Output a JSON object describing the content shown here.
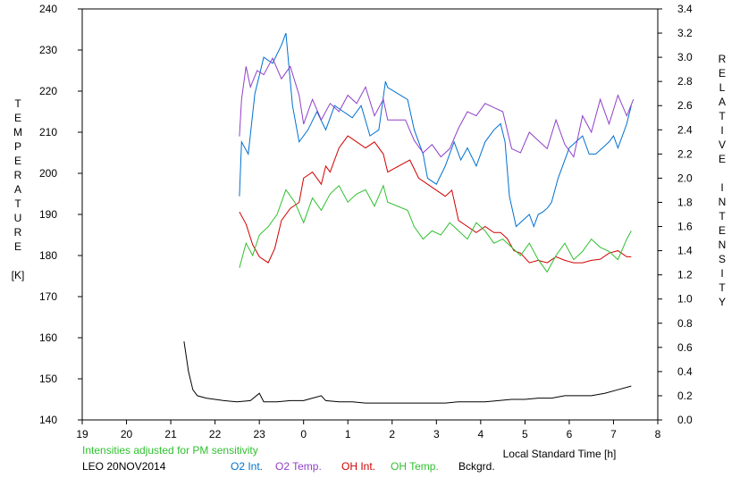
{
  "chart_data": {
    "type": "line",
    "left_axis_letters": [
      "T",
      "E",
      "M",
      "P",
      "E",
      "R",
      "A",
      "T",
      "U",
      "R",
      "E"
    ],
    "left_axis_unit": "[K]",
    "right_axis_letters": [
      "R",
      "E",
      "L",
      "A",
      "T",
      "I",
      "V",
      "E",
      "",
      "I",
      "N",
      "T",
      "E",
      "N",
      "S",
      "I",
      "T",
      "Y"
    ],
    "xlabel": "Local Standard Time [h]",
    "x_ticks": [
      19,
      20,
      21,
      22,
      23,
      0,
      1,
      2,
      3,
      4,
      5,
      6,
      7,
      8
    ],
    "y_left_ticks": [
      140,
      150,
      160,
      170,
      180,
      190,
      200,
      210,
      220,
      230,
      240
    ],
    "y_right_ticks": [
      "0.0",
      "0.2",
      "0.4",
      "0.6",
      "0.8",
      "1.0",
      "1.2",
      "1.4",
      "1.6",
      "1.8",
      "2.0",
      "2.2",
      "2.4",
      "2.6",
      "2.8",
      "3.0",
      "3.2",
      "3.4"
    ],
    "xlim": [
      19,
      32
    ],
    "ylim_left": [
      140,
      240
    ],
    "ylim_right": [
      0.0,
      3.4
    ],
    "note": "Intensities adjusted for PM sensitivity",
    "station_date": "LEO 20NOV2014",
    "series": [
      {
        "name": "O2 Int.",
        "axis": "right",
        "color": "#0070d0",
        "points": [
          [
            22.55,
            1.85
          ],
          [
            22.6,
            2.3
          ],
          [
            22.75,
            2.2
          ],
          [
            22.9,
            2.7
          ],
          [
            23.0,
            2.85
          ],
          [
            23.1,
            3.0
          ],
          [
            23.3,
            2.95
          ],
          [
            23.5,
            3.1
          ],
          [
            23.6,
            3.2
          ],
          [
            23.75,
            2.6
          ],
          [
            23.9,
            2.3
          ],
          [
            24.1,
            2.4
          ],
          [
            24.3,
            2.55
          ],
          [
            24.5,
            2.4
          ],
          [
            24.7,
            2.6
          ],
          [
            24.9,
            2.55
          ],
          [
            25.1,
            2.5
          ],
          [
            25.3,
            2.6
          ],
          [
            25.5,
            2.35
          ],
          [
            25.7,
            2.4
          ],
          [
            25.85,
            2.8
          ],
          [
            25.9,
            2.75
          ],
          [
            26.35,
            2.65
          ],
          [
            26.5,
            2.4
          ],
          [
            26.7,
            2.2
          ],
          [
            26.8,
            2.0
          ],
          [
            27.0,
            1.95
          ],
          [
            27.2,
            2.1
          ],
          [
            27.4,
            2.3
          ],
          [
            27.55,
            2.15
          ],
          [
            27.7,
            2.25
          ],
          [
            27.9,
            2.1
          ],
          [
            28.1,
            2.3
          ],
          [
            28.3,
            2.4
          ],
          [
            28.45,
            2.45
          ],
          [
            28.55,
            2.3
          ],
          [
            28.65,
            1.85
          ],
          [
            28.8,
            1.6
          ],
          [
            28.95,
            1.65
          ],
          [
            29.1,
            1.7
          ],
          [
            29.2,
            1.6
          ],
          [
            29.3,
            1.7
          ],
          [
            29.4,
            1.72
          ],
          [
            29.5,
            1.75
          ],
          [
            29.6,
            1.8
          ],
          [
            29.75,
            2.0
          ],
          [
            29.9,
            2.15
          ],
          [
            30.0,
            2.25
          ],
          [
            30.15,
            2.3
          ],
          [
            30.3,
            2.35
          ],
          [
            30.45,
            2.2
          ],
          [
            30.6,
            2.2
          ],
          [
            30.75,
            2.25
          ],
          [
            30.9,
            2.3
          ],
          [
            31.0,
            2.35
          ],
          [
            31.1,
            2.25
          ],
          [
            31.2,
            2.35
          ],
          [
            31.3,
            2.45
          ],
          [
            31.4,
            2.6
          ]
        ]
      },
      {
        "name": "O2 Temp.",
        "axis": "left",
        "color": "#9040c8",
        "points": [
          [
            22.55,
            209
          ],
          [
            22.6,
            218
          ],
          [
            22.7,
            226
          ],
          [
            22.8,
            221
          ],
          [
            22.95,
            225
          ],
          [
            23.1,
            224
          ],
          [
            23.3,
            228
          ],
          [
            23.5,
            223
          ],
          [
            23.7,
            226
          ],
          [
            23.9,
            219
          ],
          [
            24.0,
            212
          ],
          [
            24.2,
            218
          ],
          [
            24.4,
            213
          ],
          [
            24.6,
            217
          ],
          [
            24.8,
            215
          ],
          [
            25.0,
            219
          ],
          [
            25.2,
            217
          ],
          [
            25.4,
            221
          ],
          [
            25.6,
            214
          ],
          [
            25.8,
            218
          ],
          [
            25.9,
            213
          ],
          [
            26.3,
            213
          ],
          [
            26.5,
            208
          ],
          [
            26.7,
            205
          ],
          [
            26.9,
            207
          ],
          [
            27.1,
            204
          ],
          [
            27.3,
            206
          ],
          [
            27.5,
            211
          ],
          [
            27.7,
            215
          ],
          [
            27.9,
            214
          ],
          [
            28.1,
            217
          ],
          [
            28.3,
            216
          ],
          [
            28.5,
            215
          ],
          [
            28.7,
            206
          ],
          [
            28.9,
            205
          ],
          [
            29.1,
            210
          ],
          [
            29.3,
            208
          ],
          [
            29.5,
            206
          ],
          [
            29.7,
            213
          ],
          [
            29.9,
            207
          ],
          [
            30.1,
            204
          ],
          [
            30.3,
            214
          ],
          [
            30.5,
            210
          ],
          [
            30.7,
            218
          ],
          [
            30.9,
            212
          ],
          [
            31.1,
            219
          ],
          [
            31.3,
            214
          ],
          [
            31.45,
            218
          ]
        ]
      },
      {
        "name": "OH Int.",
        "axis": "right",
        "color": "#d00000",
        "points": [
          [
            22.55,
            1.72
          ],
          [
            22.7,
            1.62
          ],
          [
            22.85,
            1.45
          ],
          [
            23.0,
            1.35
          ],
          [
            23.2,
            1.3
          ],
          [
            23.35,
            1.42
          ],
          [
            23.5,
            1.65
          ],
          [
            23.7,
            1.75
          ],
          [
            23.9,
            1.8
          ],
          [
            24.0,
            2.0
          ],
          [
            24.2,
            2.05
          ],
          [
            24.4,
            1.95
          ],
          [
            24.5,
            2.1
          ],
          [
            24.6,
            2.05
          ],
          [
            24.8,
            2.25
          ],
          [
            25.0,
            2.35
          ],
          [
            25.2,
            2.3
          ],
          [
            25.4,
            2.25
          ],
          [
            25.6,
            2.3
          ],
          [
            25.8,
            2.2
          ],
          [
            25.9,
            2.05
          ],
          [
            26.4,
            2.15
          ],
          [
            26.6,
            2.0
          ],
          [
            26.8,
            1.95
          ],
          [
            27.0,
            1.9
          ],
          [
            27.2,
            1.85
          ],
          [
            27.35,
            1.9
          ],
          [
            27.5,
            1.65
          ],
          [
            27.7,
            1.6
          ],
          [
            27.9,
            1.55
          ],
          [
            28.1,
            1.6
          ],
          [
            28.3,
            1.55
          ],
          [
            28.45,
            1.55
          ],
          [
            28.6,
            1.5
          ],
          [
            28.75,
            1.4
          ],
          [
            28.9,
            1.38
          ],
          [
            29.1,
            1.3
          ],
          [
            29.3,
            1.32
          ],
          [
            29.5,
            1.3
          ],
          [
            29.7,
            1.35
          ],
          [
            29.9,
            1.32
          ],
          [
            30.1,
            1.3
          ],
          [
            30.3,
            1.3
          ],
          [
            30.5,
            1.32
          ],
          [
            30.7,
            1.33
          ],
          [
            30.9,
            1.38
          ],
          [
            31.1,
            1.4
          ],
          [
            31.3,
            1.35
          ],
          [
            31.4,
            1.35
          ]
        ]
      },
      {
        "name": "OH Temp.",
        "axis": "left",
        "color": "#30c030",
        "points": [
          [
            22.55,
            177
          ],
          [
            22.7,
            183
          ],
          [
            22.85,
            180
          ],
          [
            23.0,
            185
          ],
          [
            23.2,
            187
          ],
          [
            23.4,
            190
          ],
          [
            23.6,
            196
          ],
          [
            23.8,
            193
          ],
          [
            24.0,
            188
          ],
          [
            24.2,
            194
          ],
          [
            24.4,
            191
          ],
          [
            24.6,
            195
          ],
          [
            24.8,
            197
          ],
          [
            25.0,
            193
          ],
          [
            25.2,
            195
          ],
          [
            25.4,
            196
          ],
          [
            25.6,
            192
          ],
          [
            25.8,
            197
          ],
          [
            25.9,
            193
          ],
          [
            26.35,
            191
          ],
          [
            26.5,
            187
          ],
          [
            26.7,
            184
          ],
          [
            26.9,
            186
          ],
          [
            27.1,
            185
          ],
          [
            27.3,
            188
          ],
          [
            27.5,
            186
          ],
          [
            27.7,
            184
          ],
          [
            27.9,
            188
          ],
          [
            28.1,
            186
          ],
          [
            28.3,
            183
          ],
          [
            28.5,
            184
          ],
          [
            28.7,
            182
          ],
          [
            28.9,
            180
          ],
          [
            29.1,
            183
          ],
          [
            29.3,
            179
          ],
          [
            29.5,
            176
          ],
          [
            29.7,
            180
          ],
          [
            29.9,
            183
          ],
          [
            30.1,
            179
          ],
          [
            30.3,
            181
          ],
          [
            30.5,
            184
          ],
          [
            30.7,
            182
          ],
          [
            30.9,
            181
          ],
          [
            31.1,
            179
          ],
          [
            31.3,
            184
          ],
          [
            31.4,
            186
          ]
        ]
      },
      {
        "name": "Bckgrd.",
        "axis": "right",
        "color": "#000000",
        "points": [
          [
            21.3,
            0.65
          ],
          [
            21.4,
            0.4
          ],
          [
            21.5,
            0.25
          ],
          [
            21.6,
            0.2
          ],
          [
            21.8,
            0.18
          ],
          [
            22.0,
            0.17
          ],
          [
            22.2,
            0.16
          ],
          [
            22.5,
            0.15
          ],
          [
            22.8,
            0.16
          ],
          [
            23.0,
            0.22
          ],
          [
            23.1,
            0.15
          ],
          [
            23.4,
            0.15
          ],
          [
            23.7,
            0.16
          ],
          [
            24.0,
            0.16
          ],
          [
            24.2,
            0.18
          ],
          [
            24.4,
            0.2
          ],
          [
            24.5,
            0.16
          ],
          [
            24.8,
            0.15
          ],
          [
            25.1,
            0.15
          ],
          [
            25.4,
            0.14
          ],
          [
            25.7,
            0.14
          ],
          [
            26.0,
            0.14
          ],
          [
            26.3,
            0.14
          ],
          [
            26.6,
            0.14
          ],
          [
            26.9,
            0.14
          ],
          [
            27.2,
            0.14
          ],
          [
            27.5,
            0.15
          ],
          [
            27.8,
            0.15
          ],
          [
            28.1,
            0.15
          ],
          [
            28.4,
            0.16
          ],
          [
            28.7,
            0.17
          ],
          [
            29.0,
            0.17
          ],
          [
            29.3,
            0.18
          ],
          [
            29.6,
            0.18
          ],
          [
            29.9,
            0.2
          ],
          [
            30.2,
            0.2
          ],
          [
            30.5,
            0.2
          ],
          [
            30.8,
            0.22
          ],
          [
            31.1,
            0.25
          ],
          [
            31.4,
            0.28
          ]
        ]
      }
    ]
  }
}
